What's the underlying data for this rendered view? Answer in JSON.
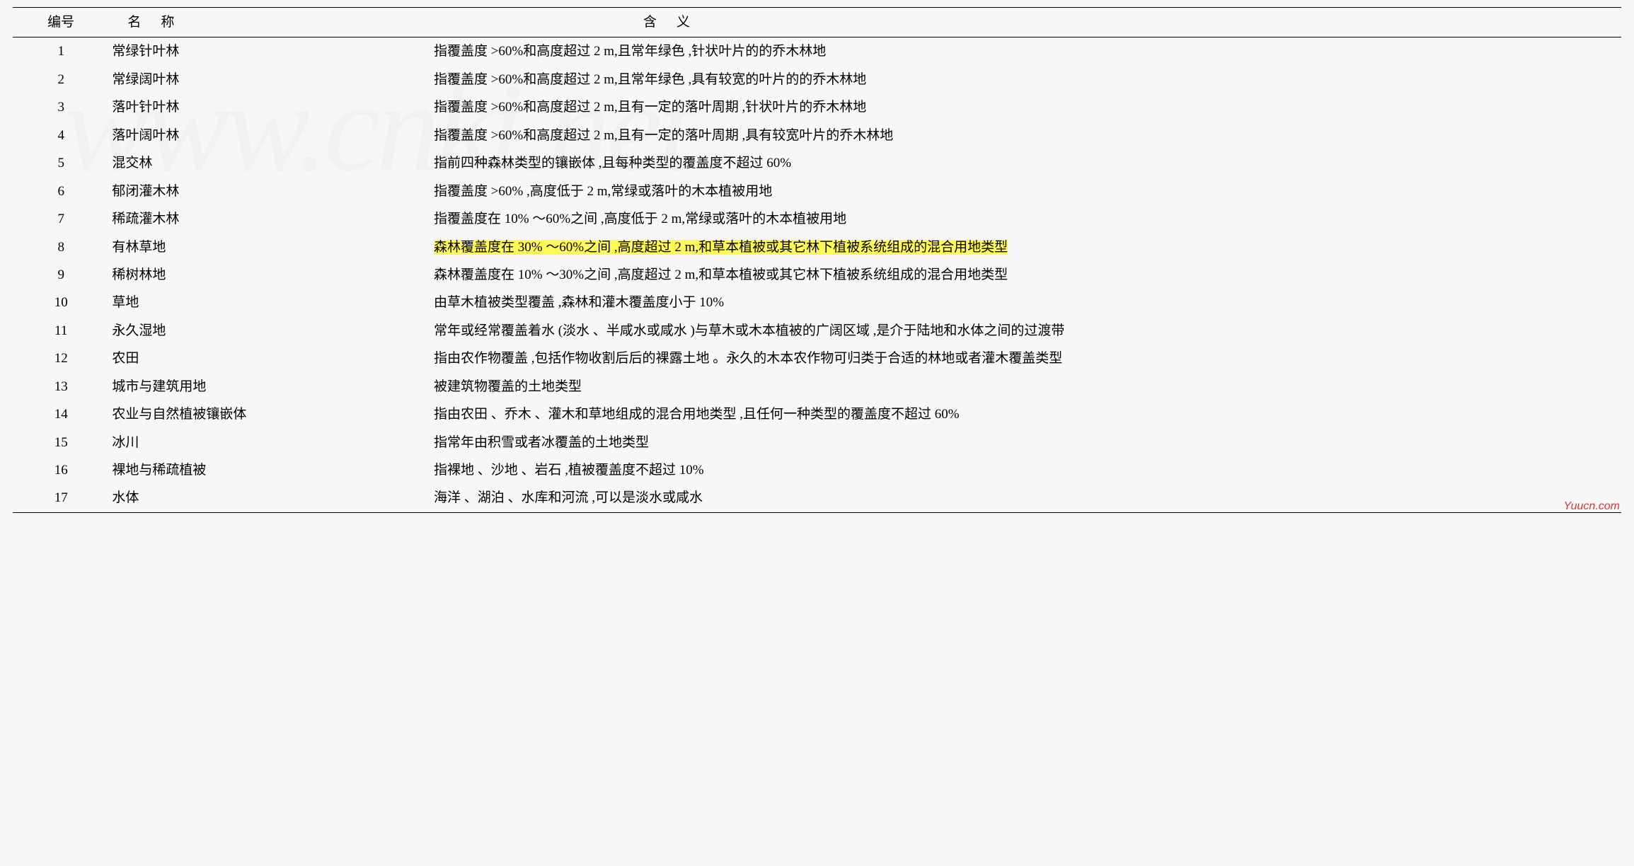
{
  "watermark_text": "www.cnki.net",
  "footer_mark": "Yuucn.com",
  "highlight_color": "#fff955",
  "background_color": "#f7f7f7",
  "highlight_row_id": 8,
  "columns": {
    "id": "编号",
    "name": "名称",
    "def": "含义"
  },
  "rows": [
    {
      "id": 1,
      "name": "常绿针叶林",
      "def": "指覆盖度 >60%和高度超过 2 m,且常年绿色 ,针状叶片的的乔木林地"
    },
    {
      "id": 2,
      "name": "常绿阔叶林",
      "def": "指覆盖度 >60%和高度超过 2 m,且常年绿色 ,具有较宽的叶片的的乔木林地"
    },
    {
      "id": 3,
      "name": "落叶针叶林",
      "def": "指覆盖度 >60%和高度超过 2 m,且有一定的落叶周期 ,针状叶片的乔木林地"
    },
    {
      "id": 4,
      "name": "落叶阔叶林",
      "def": "指覆盖度 >60%和高度超过 2 m,且有一定的落叶周期 ,具有较宽叶片的乔木林地"
    },
    {
      "id": 5,
      "name": "混交林",
      "def": "指前四种森林类型的镶嵌体 ,且每种类型的覆盖度不超过 60%"
    },
    {
      "id": 6,
      "name": "郁闭灌木林",
      "def": "指覆盖度 >60% ,高度低于 2 m,常绿或落叶的木本植被用地"
    },
    {
      "id": 7,
      "name": "稀疏灌木林",
      "def": "指覆盖度在 10% ～60%之间 ,高度低于 2 m,常绿或落叶的木本植被用地"
    },
    {
      "id": 8,
      "name": "有林草地",
      "def": "森林覆盖度在 30% ～60%之间 ,高度超过 2 m,和草本植被或其它林下植被系统组成的混合用地类型"
    },
    {
      "id": 9,
      "name": "稀树林地",
      "def": "森林覆盖度在 10% ～30%之间 ,高度超过 2 m,和草本植被或其它林下植被系统组成的混合用地类型"
    },
    {
      "id": 10,
      "name": "草地",
      "def": "由草木植被类型覆盖 ,森林和灌木覆盖度小于 10%"
    },
    {
      "id": 11,
      "name": "永久湿地",
      "def": "常年或经常覆盖着水 (淡水 、半咸水或咸水 )与草木或木本植被的广阔区域 ,是介于陆地和水体之间的过渡带"
    },
    {
      "id": 12,
      "name": "农田",
      "def": "指由农作物覆盖 ,包括作物收割后后的裸露土地 。永久的木本农作物可归类于合适的林地或者灌木覆盖类型"
    },
    {
      "id": 13,
      "name": "城市与建筑用地",
      "def": "被建筑物覆盖的土地类型"
    },
    {
      "id": 14,
      "name": "农业与自然植被镶嵌体",
      "def": "指由农田 、乔木 、灌木和草地组成的混合用地类型 ,且任何一种类型的覆盖度不超过 60%"
    },
    {
      "id": 15,
      "name": "冰川",
      "def": "指常年由积雪或者冰覆盖的土地类型"
    },
    {
      "id": 16,
      "name": "裸地与稀疏植被",
      "def": "指裸地 、沙地 、岩石 ,植被覆盖度不超过 10%"
    },
    {
      "id": 17,
      "name": "水体",
      "def": "海洋 、湖泊 、水库和河流 ,可以是淡水或咸水"
    }
  ]
}
